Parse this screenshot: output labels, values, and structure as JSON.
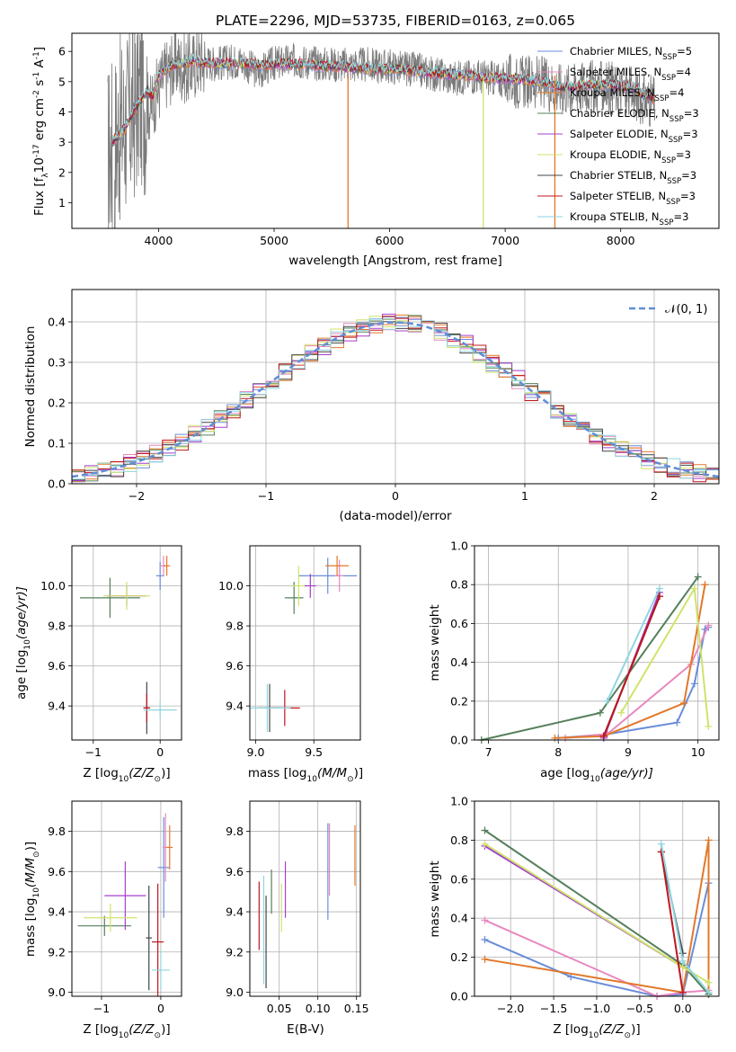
{
  "colors": {
    "chabrier_miles": "#6a8dd8",
    "salpeter_miles": "#e888bf",
    "kroupa_miles": "#e2782a",
    "chabrier_elodie": "#55805c",
    "salpeter_elodie": "#a43fcc",
    "kroupa_elodie": "#d0e36a",
    "chabrier_stelib": "#444444",
    "salpeter_stelib": "#c0161e",
    "kroupa_stelib": "#8fd6e0",
    "data": "#7a7a7a",
    "gaussian": "#5f8ed6"
  },
  "chart_data": [
    {
      "id": "spectrum",
      "type": "line",
      "title": "PLATE=2296, MJD=53735, FIBERID=0163, z=0.065",
      "xlabel": "wavelength [Angstrom, rest frame]",
      "ylabel": "Flux [f",
      "ylabel_sub": "λ",
      "ylabel_mid": "10",
      "ylabel_sup1": "-17",
      "ylabel_mid2": " erg cm",
      "ylabel_sup2": "-2",
      "ylabel_mid3": " s",
      "ylabel_sup3": "-1",
      "ylabel_mid4": " A",
      "ylabel_sup4": "-1",
      "ylabel_end": "]",
      "xlim": [
        3250,
        8850
      ],
      "ylim": [
        0.15,
        6.6
      ],
      "xticks": [
        "4000",
        "5000",
        "6000",
        "7000",
        "8000"
      ],
      "yticks": [
        "1",
        "2",
        "3",
        "4",
        "5",
        "6"
      ],
      "legend_position": "right",
      "legend": [
        {
          "label": "Chabrier MILES, N",
          "sub": "SSP",
          "value": "=5",
          "color": "#6a8dd8"
        },
        {
          "label": "Salpeter MILES, N",
          "sub": "SSP",
          "value": "=4",
          "color": "#e888bf"
        },
        {
          "label": "Kroupa MILES, N",
          "sub": "SSP",
          "value": "=4",
          "color": "#e2782a"
        },
        {
          "label": "Chabrier ELODIE, N",
          "sub": "SSP",
          "value": "=3",
          "color": "#55805c"
        },
        {
          "label": "Salpeter ELODIE, N",
          "sub": "SSP",
          "value": "=3",
          "color": "#a43fcc"
        },
        {
          "label": "Kroupa ELODIE, N",
          "sub": "SSP",
          "value": "=3",
          "color": "#d0e36a"
        },
        {
          "label": "Chabrier STELIB, N",
          "sub": "SSP",
          "value": "=3",
          "color": "#444444"
        },
        {
          "label": "Salpeter STELIB, N",
          "sub": "SSP",
          "value": "=3",
          "color": "#c0161e"
        },
        {
          "label": "Kroupa STELIB, N",
          "sub": "SSP",
          "value": "=3",
          "color": "#8fd6e0"
        }
      ],
      "data_curve": {
        "x": [
          3560,
          3650,
          3750,
          3850,
          3930,
          3970,
          4050,
          4150,
          4250,
          4350,
          4500,
          4700,
          4862,
          5000,
          5200,
          5400,
          5600,
          5800,
          6000,
          6200,
          6400,
          6563,
          6700,
          6900,
          7100,
          7300,
          7500,
          7700,
          7900,
          8100,
          8300
        ],
        "y": [
          2.5,
          3.3,
          3.8,
          4.6,
          4.1,
          4.5,
          5.2,
          5.6,
          5.4,
          5.7,
          5.6,
          5.7,
          5.3,
          5.6,
          5.7,
          5.6,
          5.55,
          5.55,
          5.5,
          5.4,
          5.25,
          5.1,
          5.2,
          5.1,
          5.0,
          5.0,
          4.75,
          4.85,
          4.8,
          4.6,
          4.3
        ]
      },
      "model_curve": {
        "x": [
          3600,
          3700,
          3800,
          3900,
          3950,
          4000,
          4100,
          4200,
          4300,
          4400,
          4500,
          4700,
          4900,
          5100,
          5300,
          5500,
          5700,
          5900,
          6100,
          6300,
          6500,
          6700,
          6900,
          7100,
          7300,
          7500,
          7700,
          7900,
          8100,
          8300
        ],
        "y": [
          3.0,
          3.4,
          4.1,
          4.7,
          4.5,
          5.2,
          5.5,
          5.6,
          5.7,
          5.6,
          5.6,
          5.6,
          5.55,
          5.6,
          5.55,
          5.5,
          5.45,
          5.4,
          5.4,
          5.3,
          5.25,
          5.2,
          5.1,
          5.1,
          5.0,
          4.8,
          4.9,
          4.9,
          4.8,
          4.4
        ]
      }
    },
    {
      "id": "residuals",
      "type": "line",
      "xlabel": "(data-model)/error",
      "ylabel": "Normed distribution",
      "xlim": [
        -2.5,
        2.5
      ],
      "ylim": [
        0,
        0.48
      ],
      "xticks": [
        "−2",
        "−1",
        "0",
        "1",
        "2"
      ],
      "yticks": [
        "0.0",
        "0.1",
        "0.2",
        "0.3",
        "0.4"
      ],
      "grid": true,
      "legend_position": "top-right",
      "gaussian_label": "𝒩(0, 1)",
      "series": [
        {
          "color": "#6a8dd8",
          "offset": 0.0
        },
        {
          "color": "#e888bf",
          "offset": 0.012
        },
        {
          "color": "#e2782a",
          "offset": -0.01
        },
        {
          "color": "#55805c",
          "offset": 0.008
        },
        {
          "color": "#a43fcc",
          "offset": -0.015
        },
        {
          "color": "#d0e36a",
          "offset": 0.015
        },
        {
          "color": "#444444",
          "offset": -0.005
        },
        {
          "color": "#c0161e",
          "offset": 0.01
        },
        {
          "color": "#8fd6e0",
          "offset": -0.008
        }
      ]
    },
    {
      "id": "age_vs_Z",
      "type": "scatter",
      "xlabel": "Z [log",
      "xlabel_sub": "10",
      "xlabel_end": "(Z/Z",
      "xlabel_sun": "⊙",
      "xlabel_tail": ")]",
      "ylabel": "age  [log",
      "ylabel_sub": "10",
      "ylabel_end": "(age/yr)]",
      "xlim": [
        -1.32,
        0.32
      ],
      "ylim": [
        9.23,
        10.2
      ],
      "xticks": [
        "−1",
        "0"
      ],
      "yticks": [
        "9.4",
        "9.6",
        "9.8",
        "10.0"
      ],
      "grid": true,
      "points": [
        {
          "x": 0.0,
          "xe": 0.06,
          "y": 10.05,
          "ye": 0.07,
          "color": "#6a8dd8"
        },
        {
          "x": 0.05,
          "xe": 0.04,
          "y": 10.1,
          "ye": 0.05,
          "color": "#e888bf"
        },
        {
          "x": 0.1,
          "xe": 0.05,
          "y": 10.1,
          "ye": 0.05,
          "color": "#e2782a"
        },
        {
          "x": -0.75,
          "xe": 0.45,
          "y": 9.94,
          "ye": 0.1,
          "color": "#55805c"
        },
        {
          "x": -0.5,
          "xe": 0.3,
          "y": 9.95,
          "ye": 0.05,
          "color": "#a43fcc"
        },
        {
          "x": -0.5,
          "xe": 0.35,
          "y": 9.95,
          "ye": 0.07,
          "color": "#d0e36a"
        },
        {
          "x": -0.2,
          "xe": 0.05,
          "y": 9.39,
          "ye": 0.13,
          "color": "#444444"
        },
        {
          "x": -0.2,
          "xe": 0.05,
          "y": 9.39,
          "ye": 0.07,
          "color": "#c0161e"
        },
        {
          "x": 0.0,
          "xe": 0.25,
          "y": 9.38,
          "ye": 0.04,
          "color": "#8fd6e0"
        }
      ]
    },
    {
      "id": "age_vs_mass",
      "type": "scatter",
      "xlabel": "mass [log",
      "xlabel_sub": "10",
      "xlabel_end": "(M/M",
      "xlabel_sun": "⊙",
      "xlabel_tail": ")]",
      "xlim": [
        8.95,
        9.9
      ],
      "ylim": [
        9.23,
        10.2
      ],
      "xticks": [
        "9.0",
        "9.5"
      ],
      "yticks": [
        "9.4",
        "9.6",
        "9.8",
        "10.0"
      ],
      "grid": true,
      "points": [
        {
          "x": 9.62,
          "xe": 0.25,
          "y": 10.05,
          "ye": 0.09,
          "color": "#6a8dd8"
        },
        {
          "x": 9.72,
          "xe": 0.04,
          "y": 10.05,
          "ye": 0.08,
          "color": "#e888bf"
        },
        {
          "x": 9.7,
          "xe": 0.1,
          "y": 10.1,
          "ye": 0.05,
          "color": "#e2782a"
        },
        {
          "x": 9.33,
          "xe": 0.08,
          "y": 9.94,
          "ye": 0.08,
          "color": "#55805c"
        },
        {
          "x": 9.47,
          "xe": 0.05,
          "y": 10.0,
          "ye": 0.06,
          "color": "#a43fcc"
        },
        {
          "x": 9.37,
          "xe": 0.05,
          "y": 10.0,
          "ye": 0.1,
          "color": "#d0e36a"
        },
        {
          "x": 9.12,
          "xe": 0.1,
          "y": 9.39,
          "ye": 0.12,
          "color": "#444444"
        },
        {
          "x": 9.25,
          "xe": 0.13,
          "y": 9.39,
          "ye": 0.09,
          "color": "#c0161e"
        },
        {
          "x": 9.1,
          "xe": 0.2,
          "y": 9.39,
          "ye": 0.12,
          "color": "#8fd6e0"
        }
      ]
    },
    {
      "id": "weight_vs_age",
      "type": "line",
      "xlabel": "age  [log",
      "xlabel_sub": "10",
      "xlabel_end": "(age/yr)]",
      "ylabel": "mass weight",
      "xlim": [
        6.8,
        10.3
      ],
      "ylim": [
        0,
        1.0
      ],
      "xticks": [
        "7",
        "8",
        "9",
        "10"
      ],
      "yticks": [
        "0.0",
        "0.2",
        "0.4",
        "0.6",
        "0.8",
        "1.0"
      ],
      "grid": true,
      "series": [
        {
          "color": "#6a8dd8",
          "x": [
            8.0,
            8.7,
            9.7,
            9.95,
            10.1,
            10.15
          ],
          "y": [
            0.01,
            0.03,
            0.09,
            0.29,
            0.57,
            0.58
          ]
        },
        {
          "color": "#e888bf",
          "x": [
            8.1,
            8.7,
            9.9,
            10.15
          ],
          "y": [
            0.01,
            0.03,
            0.39,
            0.59
          ]
        },
        {
          "color": "#e2782a",
          "x": [
            7.95,
            8.65,
            9.8,
            10.1
          ],
          "y": [
            0.01,
            0.02,
            0.19,
            0.8
          ]
        },
        {
          "color": "#55805c",
          "x": [
            6.9,
            8.6,
            10.0
          ],
          "y": [
            0.0,
            0.14,
            0.84
          ]
        },
        {
          "color": "#a43fcc",
          "x": [
            8.65,
            9.45
          ],
          "y": [
            0.01,
            0.76
          ]
        },
        {
          "color": "#d0e36a",
          "x": [
            8.9,
            9.95,
            10.15
          ],
          "y": [
            0.14,
            0.78,
            0.07
          ]
        },
        {
          "color": "#444444",
          "x": [
            8.65,
            9.45
          ],
          "y": [
            0.02,
            0.74
          ]
        },
        {
          "color": "#c0161e",
          "x": [
            8.65,
            9.45
          ],
          "y": [
            0.02,
            0.74
          ]
        },
        {
          "color": "#8fd6e0",
          "x": [
            8.7,
            9.45
          ],
          "y": [
            0.2,
            0.78
          ]
        }
      ]
    },
    {
      "id": "mass_vs_Z",
      "type": "scatter",
      "xlabel": "Z [log",
      "xlabel_sub": "10",
      "xlabel_end": "(Z/Z",
      "xlabel_sun": "⊙",
      "xlabel_tail": ")]",
      "ylabel": "mass [log",
      "ylabel_sub": "10",
      "ylabel_end": "(M/M",
      "ylabel_sun": "⊙",
      "ylabel_tail": ")]",
      "xlim": [
        -1.5,
        0.35
      ],
      "ylim": [
        8.98,
        9.95
      ],
      "xticks": [
        "−1",
        "0"
      ],
      "yticks": [
        "9.0",
        "9.2",
        "9.4",
        "9.6",
        "9.8"
      ],
      "grid": true,
      "points": [
        {
          "x": 0.05,
          "xe": 0.1,
          "y": 9.62,
          "ye": 0.25,
          "color": "#6a8dd8"
        },
        {
          "x": 0.08,
          "xe": 0.05,
          "y": 9.72,
          "ye": 0.17,
          "color": "#e888bf"
        },
        {
          "x": 0.15,
          "xe": 0.05,
          "y": 9.72,
          "ye": 0.11,
          "color": "#e2782a"
        },
        {
          "x": -0.95,
          "xe": 0.45,
          "y": 9.33,
          "ye": 0.05,
          "color": "#55805c"
        },
        {
          "x": -0.6,
          "xe": 0.35,
          "y": 9.48,
          "ye": 0.17,
          "color": "#a43fcc"
        },
        {
          "x": -0.85,
          "xe": 0.45,
          "y": 9.37,
          "ye": 0.07,
          "color": "#d0e36a"
        },
        {
          "x": -0.2,
          "xe": 0.05,
          "y": 9.27,
          "ye": 0.26,
          "color": "#444444"
        },
        {
          "x": -0.05,
          "xe": 0.1,
          "y": 9.25,
          "ye": 0.29,
          "color": "#c0161e"
        },
        {
          "x": 0.0,
          "xe": 0.15,
          "y": 9.11,
          "ye": 0.1,
          "color": "#8fd6e0"
        }
      ]
    },
    {
      "id": "mass_vs_ebv",
      "type": "scatter",
      "xlabel": "E(B-V)",
      "xlim": [
        0.012,
        0.155
      ],
      "ylim": [
        8.98,
        9.95
      ],
      "xticks": [
        "0.05",
        "0.10",
        "0.15"
      ],
      "yticks": [
        "9.0",
        "9.2",
        "9.4",
        "9.6",
        "9.8"
      ],
      "grid": true,
      "points": [
        {
          "x": 0.113,
          "y": 9.6,
          "ye": 0.24,
          "color": "#6a8dd8"
        },
        {
          "x": 0.115,
          "y": 9.66,
          "ye": 0.18,
          "color": "#e888bf"
        },
        {
          "x": 0.148,
          "y": 9.68,
          "ye": 0.15,
          "color": "#e2782a"
        },
        {
          "x": 0.04,
          "y": 9.5,
          "ye": 0.11,
          "color": "#55805c"
        },
        {
          "x": 0.058,
          "y": 9.51,
          "ye": 0.14,
          "color": "#a43fcc"
        },
        {
          "x": 0.053,
          "y": 9.42,
          "ye": 0.12,
          "color": "#d0e36a"
        },
        {
          "x": 0.033,
          "y": 9.25,
          "ye": 0.23,
          "color": "#444444"
        },
        {
          "x": 0.024,
          "y": 9.38,
          "ye": 0.17,
          "color": "#c0161e"
        },
        {
          "x": 0.03,
          "y": 9.31,
          "ye": 0.27,
          "color": "#8fd6e0"
        }
      ]
    },
    {
      "id": "weight_vs_Z",
      "type": "line",
      "xlabel": "Z [log",
      "xlabel_sub": "10",
      "xlabel_end": "(Z/Z",
      "xlabel_sun": "⊙",
      "xlabel_tail": ")]",
      "ylabel": "mass weight",
      "xlim": [
        -2.42,
        0.42
      ],
      "ylim": [
        0,
        1.0
      ],
      "xticks": [
        "−2.0",
        "−1.5",
        "−1.0",
        "−0.5",
        "0.0"
      ],
      "yticks": [
        "0.0",
        "0.2",
        "0.4",
        "0.6",
        "0.8",
        "1.0"
      ],
      "grid": true,
      "series": [
        {
          "color": "#6a8dd8",
          "x": [
            -2.3,
            -1.3,
            -0.3,
            0.0,
            0.3
          ],
          "y": [
            0.29,
            0.1,
            0.0,
            0.01,
            0.58
          ]
        },
        {
          "color": "#e888bf",
          "x": [
            -2.3,
            -0.3,
            0.0,
            0.3
          ],
          "y": [
            0.39,
            0.0,
            0.02,
            0.03
          ]
        },
        {
          "color": "#e2782a",
          "x": [
            -2.3,
            0.0,
            0.3,
            0.3
          ],
          "y": [
            0.19,
            0.02,
            0.8,
            0.01
          ]
        },
        {
          "color": "#55805c",
          "x": [
            -2.3,
            0.0,
            0.3
          ],
          "y": [
            0.85,
            0.16,
            0.01
          ]
        },
        {
          "color": "#a43fcc",
          "x": [
            -2.3,
            0.0
          ],
          "y": [
            0.77,
            0.15
          ]
        },
        {
          "color": "#d0e36a",
          "x": [
            -2.3,
            0.0,
            0.3
          ],
          "y": [
            0.78,
            0.15,
            0.07
          ]
        },
        {
          "color": "#444444",
          "x": [
            -0.25,
            0.0
          ],
          "y": [
            0.74,
            0.22
          ]
        },
        {
          "color": "#c0161e",
          "x": [
            -0.25,
            0.0
          ],
          "y": [
            0.74,
            0.02
          ]
        },
        {
          "color": "#8fd6e0",
          "x": [
            -0.25,
            0.0,
            0.3
          ],
          "y": [
            0.78,
            0.18,
            0.02
          ]
        }
      ]
    }
  ]
}
